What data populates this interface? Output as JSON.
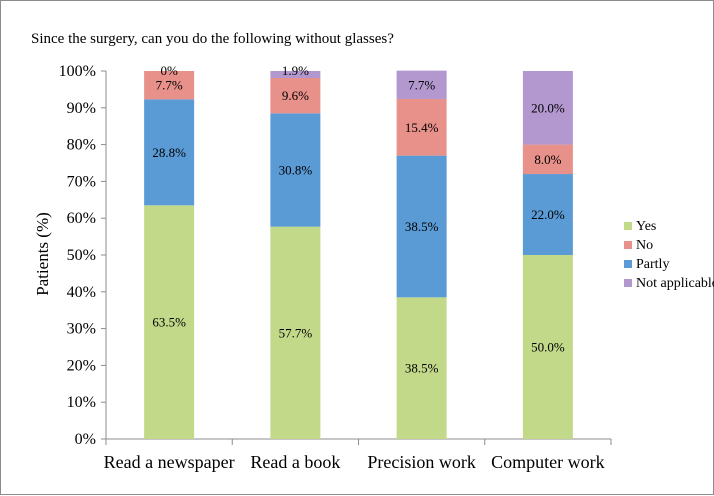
{
  "chart_data": {
    "type": "bar",
    "stacked": true,
    "title": "Since the surgery, can you do the following without glasses?",
    "ylabel": "Patients (%)",
    "xlabel": "",
    "ylim": [
      0,
      100
    ],
    "yticks": [
      "0%",
      "10%",
      "20%",
      "30%",
      "40%",
      "50%",
      "60%",
      "70%",
      "80%",
      "90%",
      "100%"
    ],
    "categories": [
      "Read a newspaper",
      "Read a book",
      "Precision work",
      "Computer work"
    ],
    "series": [
      {
        "name": "Yes",
        "color": "#c3d98a",
        "values": [
          63.5,
          57.7,
          38.5,
          50.0
        ],
        "labels": [
          "63.5%",
          "57.7%",
          "38.5%",
          "50.0%"
        ]
      },
      {
        "name": "Partly",
        "color": "#5b9bd5",
        "values": [
          28.8,
          30.8,
          38.5,
          22.0
        ],
        "labels": [
          "28.8%",
          "30.8%",
          "38.5%",
          "22.0%"
        ]
      },
      {
        "name": "No",
        "color": "#e8908a",
        "values": [
          7.7,
          9.6,
          15.4,
          8.0
        ],
        "labels": [
          "7.7%",
          "9.6%",
          "15.4%",
          "8.0%"
        ]
      },
      {
        "name": "Not applicable",
        "color": "#b398cf",
        "values": [
          0,
          1.9,
          7.7,
          20.0
        ],
        "labels": [
          "0%",
          "1.9%",
          "7.7%",
          "20.0%"
        ]
      }
    ],
    "legend": {
      "placement": "right",
      "order": [
        "Yes",
        "No",
        "Partly",
        "Not applicable"
      ]
    },
    "grid": false
  }
}
